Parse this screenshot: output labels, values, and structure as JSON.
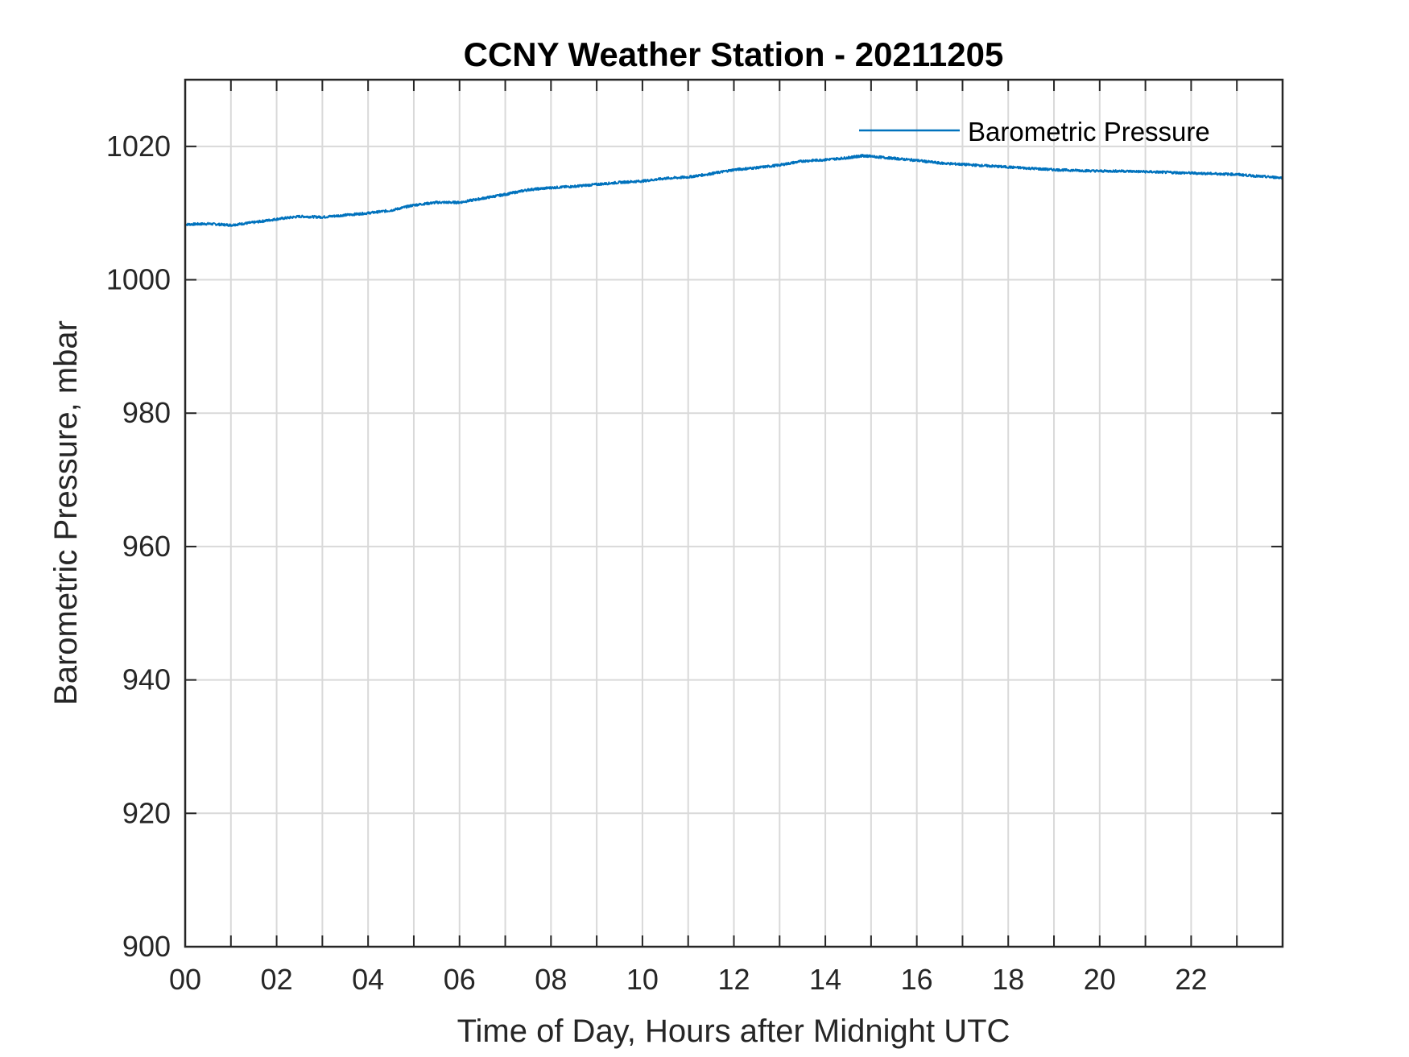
{
  "chart_data": {
    "type": "line",
    "title": "CCNY Weather Station - 20211205",
    "xlabel": "Time of Day, Hours after Midnight UTC",
    "ylabel": "Barometric Pressure, mbar",
    "xlim": [
      0,
      24
    ],
    "ylim": [
      900,
      1030
    ],
    "x_ticks": [
      0,
      2,
      4,
      6,
      8,
      10,
      12,
      14,
      16,
      18,
      20,
      22
    ],
    "x_tick_labels": [
      "00",
      "02",
      "04",
      "06",
      "08",
      "10",
      "12",
      "14",
      "16",
      "18",
      "20",
      "22"
    ],
    "y_ticks": [
      900,
      920,
      940,
      960,
      980,
      1000,
      1020
    ],
    "y_tick_labels": [
      "900",
      "920",
      "940",
      "960",
      "980",
      "1000",
      "1020"
    ],
    "grid": true,
    "legend_position": "top-right",
    "colors": {
      "series": "#0072BD",
      "axes": "#262626",
      "grid": "#d9d9d9"
    },
    "series": [
      {
        "name": "Barometric Pressure",
        "x": [
          0,
          0.5,
          1.0,
          1.5,
          2.0,
          2.5,
          3.0,
          3.5,
          4.0,
          4.5,
          5.0,
          5.5,
          6.0,
          6.5,
          7.0,
          7.5,
          8.0,
          8.5,
          9.0,
          9.5,
          10.0,
          10.5,
          11.0,
          11.5,
          12.0,
          12.5,
          13.0,
          13.5,
          14.0,
          14.5,
          14.8,
          15.0,
          15.5,
          16.0,
          16.5,
          17.0,
          17.5,
          18.0,
          18.5,
          19.0,
          19.5,
          20.0,
          20.5,
          21.0,
          21.5,
          22.0,
          22.5,
          23.0,
          23.5,
          24.0
        ],
        "y": [
          1008.3,
          1008.4,
          1008.2,
          1008.6,
          1009.1,
          1009.5,
          1009.4,
          1009.7,
          1010.0,
          1010.4,
          1011.2,
          1011.6,
          1011.6,
          1012.2,
          1012.8,
          1013.5,
          1013.8,
          1014.0,
          1014.3,
          1014.6,
          1014.8,
          1015.2,
          1015.4,
          1015.9,
          1016.5,
          1016.8,
          1017.2,
          1017.8,
          1018.0,
          1018.3,
          1018.6,
          1018.5,
          1018.2,
          1017.9,
          1017.5,
          1017.3,
          1017.1,
          1016.9,
          1016.7,
          1016.5,
          1016.4,
          1016.3,
          1016.3,
          1016.2,
          1016.1,
          1016.0,
          1015.9,
          1015.8,
          1015.5,
          1015.3
        ]
      }
    ]
  }
}
